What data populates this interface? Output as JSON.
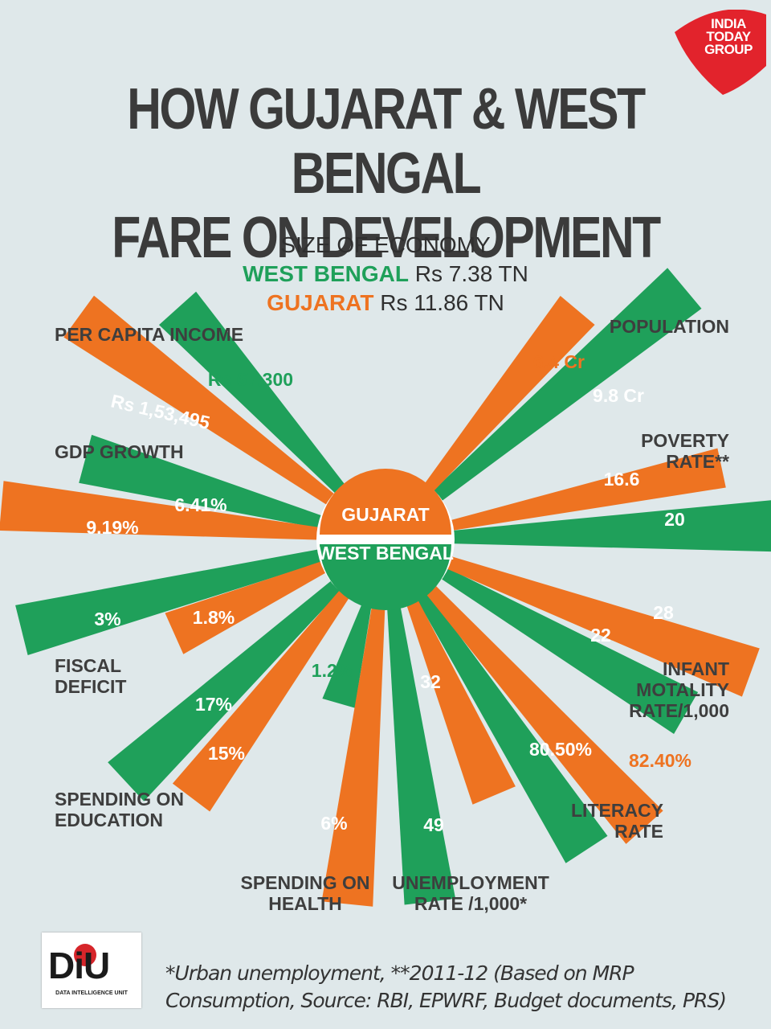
{
  "title_lines": [
    "HOW GUJARAT & WEST BENGAL",
    "FARE ON DEVELOPMENT"
  ],
  "logo": {
    "lines": [
      "INDIA",
      "TODAY",
      "GROUP"
    ],
    "color": "#e2232c"
  },
  "size_of_economy": {
    "heading": "SIZE OF ECONOMY",
    "west_bengal_label": "WEST BENGAL",
    "west_bengal_value": "Rs 7.38 TN",
    "gujarat_label": "GUJARAT",
    "gujarat_value": "Rs 11.86 TN"
  },
  "center": {
    "gujarat_label": "GUJARAT",
    "west_bengal_label": "WEST BENGAL"
  },
  "colors": {
    "gujarat": "#ee7321",
    "west_bengal": "#1fa05a",
    "background": "#dfe8ea"
  },
  "chart_data": {
    "type": "bar",
    "subtype": "radial-paired",
    "series": [
      {
        "name": "GUJARAT",
        "color": "#ee7321"
      },
      {
        "name": "WEST BENGAL",
        "color": "#1fa05a"
      }
    ],
    "indicators": [
      {
        "category": "PER CAPITA INCOME",
        "gujarat": 153495,
        "west_bengal": 67300,
        "gujarat_label": "Rs 1,53,495",
        "west_bengal_label": "Rs 67,300"
      },
      {
        "category": "GDP GROWTH",
        "gujarat": 9.19,
        "west_bengal": 6.41,
        "gujarat_label": "9.19%",
        "west_bengal_label": "6.41%"
      },
      {
        "category": "FISCAL DEFICIT",
        "gujarat": 1.8,
        "west_bengal": 3,
        "gujarat_label": "1.8%",
        "west_bengal_label": "3%"
      },
      {
        "category": "SPENDING ON EDUCATION",
        "gujarat": 15,
        "west_bengal": 17,
        "gujarat_label": "15%",
        "west_bengal_label": "17%"
      },
      {
        "category": "SPENDING ON HEALTH",
        "gujarat": 6,
        "west_bengal": 1.2,
        "gujarat_label": "6%",
        "west_bengal_label": "1.2%"
      },
      {
        "category": "UNEMPLOYMENT RATE /1,000*",
        "gujarat": 32,
        "west_bengal": 49,
        "gujarat_label": "32",
        "west_bengal_label": "49"
      },
      {
        "category": "LITERACY RATE",
        "gujarat": 82.4,
        "west_bengal": 80.5,
        "gujarat_label": "82.40%",
        "west_bengal_label": "80.50%"
      },
      {
        "category": "INFANT MOTALITY RATE/1,000",
        "gujarat": 28,
        "west_bengal": 22,
        "gujarat_label": "28",
        "west_bengal_label": "22"
      },
      {
        "category": "POVERTY RATE**",
        "gujarat": 16.6,
        "west_bengal": 20,
        "gujarat_label": "16.6",
        "west_bengal_label": "20"
      },
      {
        "category": "POPULATION",
        "gujarat": 6.4,
        "west_bengal": 9.8,
        "gujarat_label": "6.4 Cr",
        "west_bengal_label": "9.8 Cr"
      }
    ]
  },
  "footer": {
    "note_lines": [
      "*Urban unemployment, **2011-12 (Based on MRP",
      "Consumption, Source: RBI, EPWRF, Budget documents, PRS)"
    ],
    "diu_logo": "DiU",
    "diu_sub": "DATA INTELLIGENCE UNIT"
  }
}
